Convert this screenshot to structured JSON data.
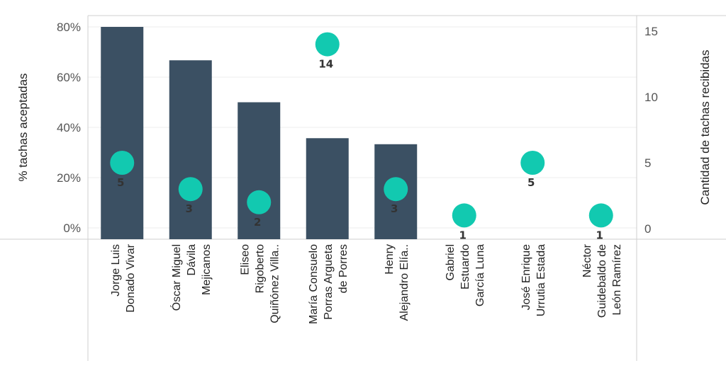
{
  "chart_data": {
    "type": "bar",
    "categories": [
      [
        "Jorge Luis",
        "Donado Vivar"
      ],
      [
        "Óscar Miguel",
        "Dávila",
        "Mejicanos"
      ],
      [
        "Eliseo",
        "Rigoberto",
        "Quiñónez Villa.."
      ],
      [
        "María Consuelo",
        "Porras Argueta",
        "de Porres"
      ],
      [
        "Henry",
        "Alejandro Elía.."
      ],
      [
        "Gabriel",
        "Estuardo",
        "García Luna"
      ],
      [
        "José Enrique",
        "Urrutia Estada"
      ],
      [
        "Néctor",
        "Guidebaldo de",
        "León Ramírez"
      ]
    ],
    "series": [
      {
        "axis": "left",
        "type": "bar",
        "values": [
          0.8,
          0.667,
          0.5,
          0.357,
          0.333,
          0,
          0,
          0
        ],
        "color": "#3b5063"
      },
      {
        "axis": "right",
        "type": "scatter",
        "values": [
          5,
          3,
          2,
          14,
          3,
          1,
          5,
          1
        ],
        "color": "#12c9b0"
      }
    ],
    "ylabel": "% tachas aceptadas",
    "y2label": "Cantidad de tachas recibidas",
    "ylim": [
      0,
      0.8
    ],
    "y2lim": [
      0,
      15
    ],
    "yticks": [
      "0%",
      "20%",
      "40%",
      "60%",
      "80%"
    ],
    "y2ticks": [
      "0",
      "5",
      "10",
      "15"
    ],
    "grid": true
  }
}
